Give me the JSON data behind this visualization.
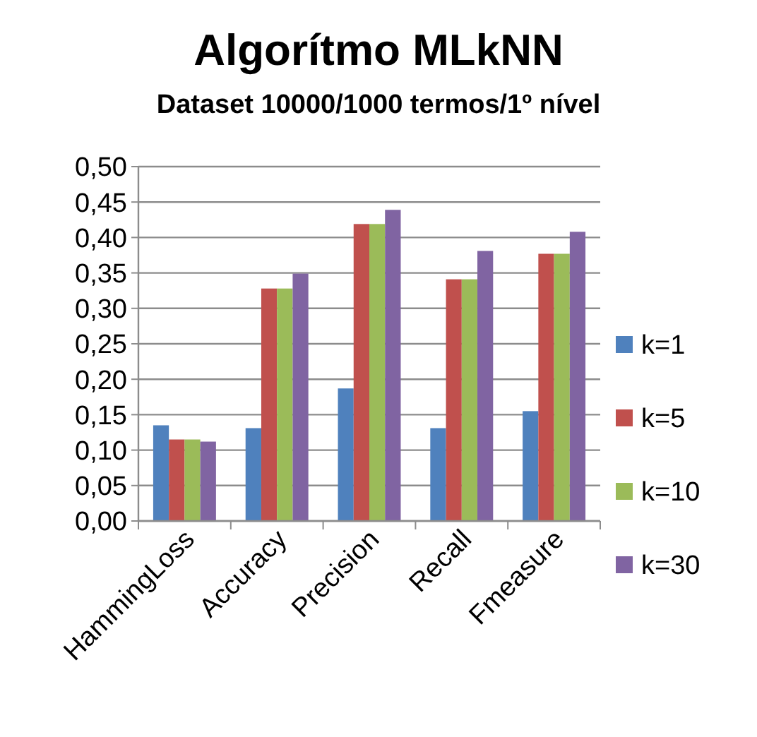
{
  "chart_data": {
    "type": "bar",
    "title": "Algorítmo MLkNN",
    "subtitle": "Dataset 10000/1000 termos/1º nível",
    "categories": [
      "HammingLoss",
      "Accuracy",
      "Precision",
      "Recall",
      "Fmeasure"
    ],
    "series": [
      {
        "name": "k=1",
        "color": "#4f81bd",
        "values": [
          0.135,
          0.131,
          0.187,
          0.131,
          0.155
        ]
      },
      {
        "name": "k=5",
        "color": "#c0504d",
        "values": [
          0.115,
          0.328,
          0.419,
          0.341,
          0.377
        ]
      },
      {
        "name": "k=10",
        "color": "#9bbb59",
        "values": [
          0.115,
          0.328,
          0.419,
          0.341,
          0.377
        ]
      },
      {
        "name": "k=30",
        "color": "#8064a2",
        "values": [
          0.112,
          0.349,
          0.439,
          0.381,
          0.408
        ]
      }
    ],
    "ylim": [
      0,
      0.5
    ],
    "yticks": [
      {
        "value": 0,
        "label": "0,00"
      },
      {
        "value": 0.05,
        "label": "0,05"
      },
      {
        "value": 0.1,
        "label": "0,10"
      },
      {
        "value": 0.15,
        "label": "0,15"
      },
      {
        "value": 0.2,
        "label": "0,20"
      },
      {
        "value": 0.25,
        "label": "0,25"
      },
      {
        "value": 0.3,
        "label": "0,30"
      },
      {
        "value": 0.35,
        "label": "0,35"
      },
      {
        "value": 0.4,
        "label": "0,40"
      },
      {
        "value": 0.45,
        "label": "0,45"
      },
      {
        "value": 0.5,
        "label": "0,50"
      }
    ],
    "grid": "y",
    "legend": "right"
  }
}
